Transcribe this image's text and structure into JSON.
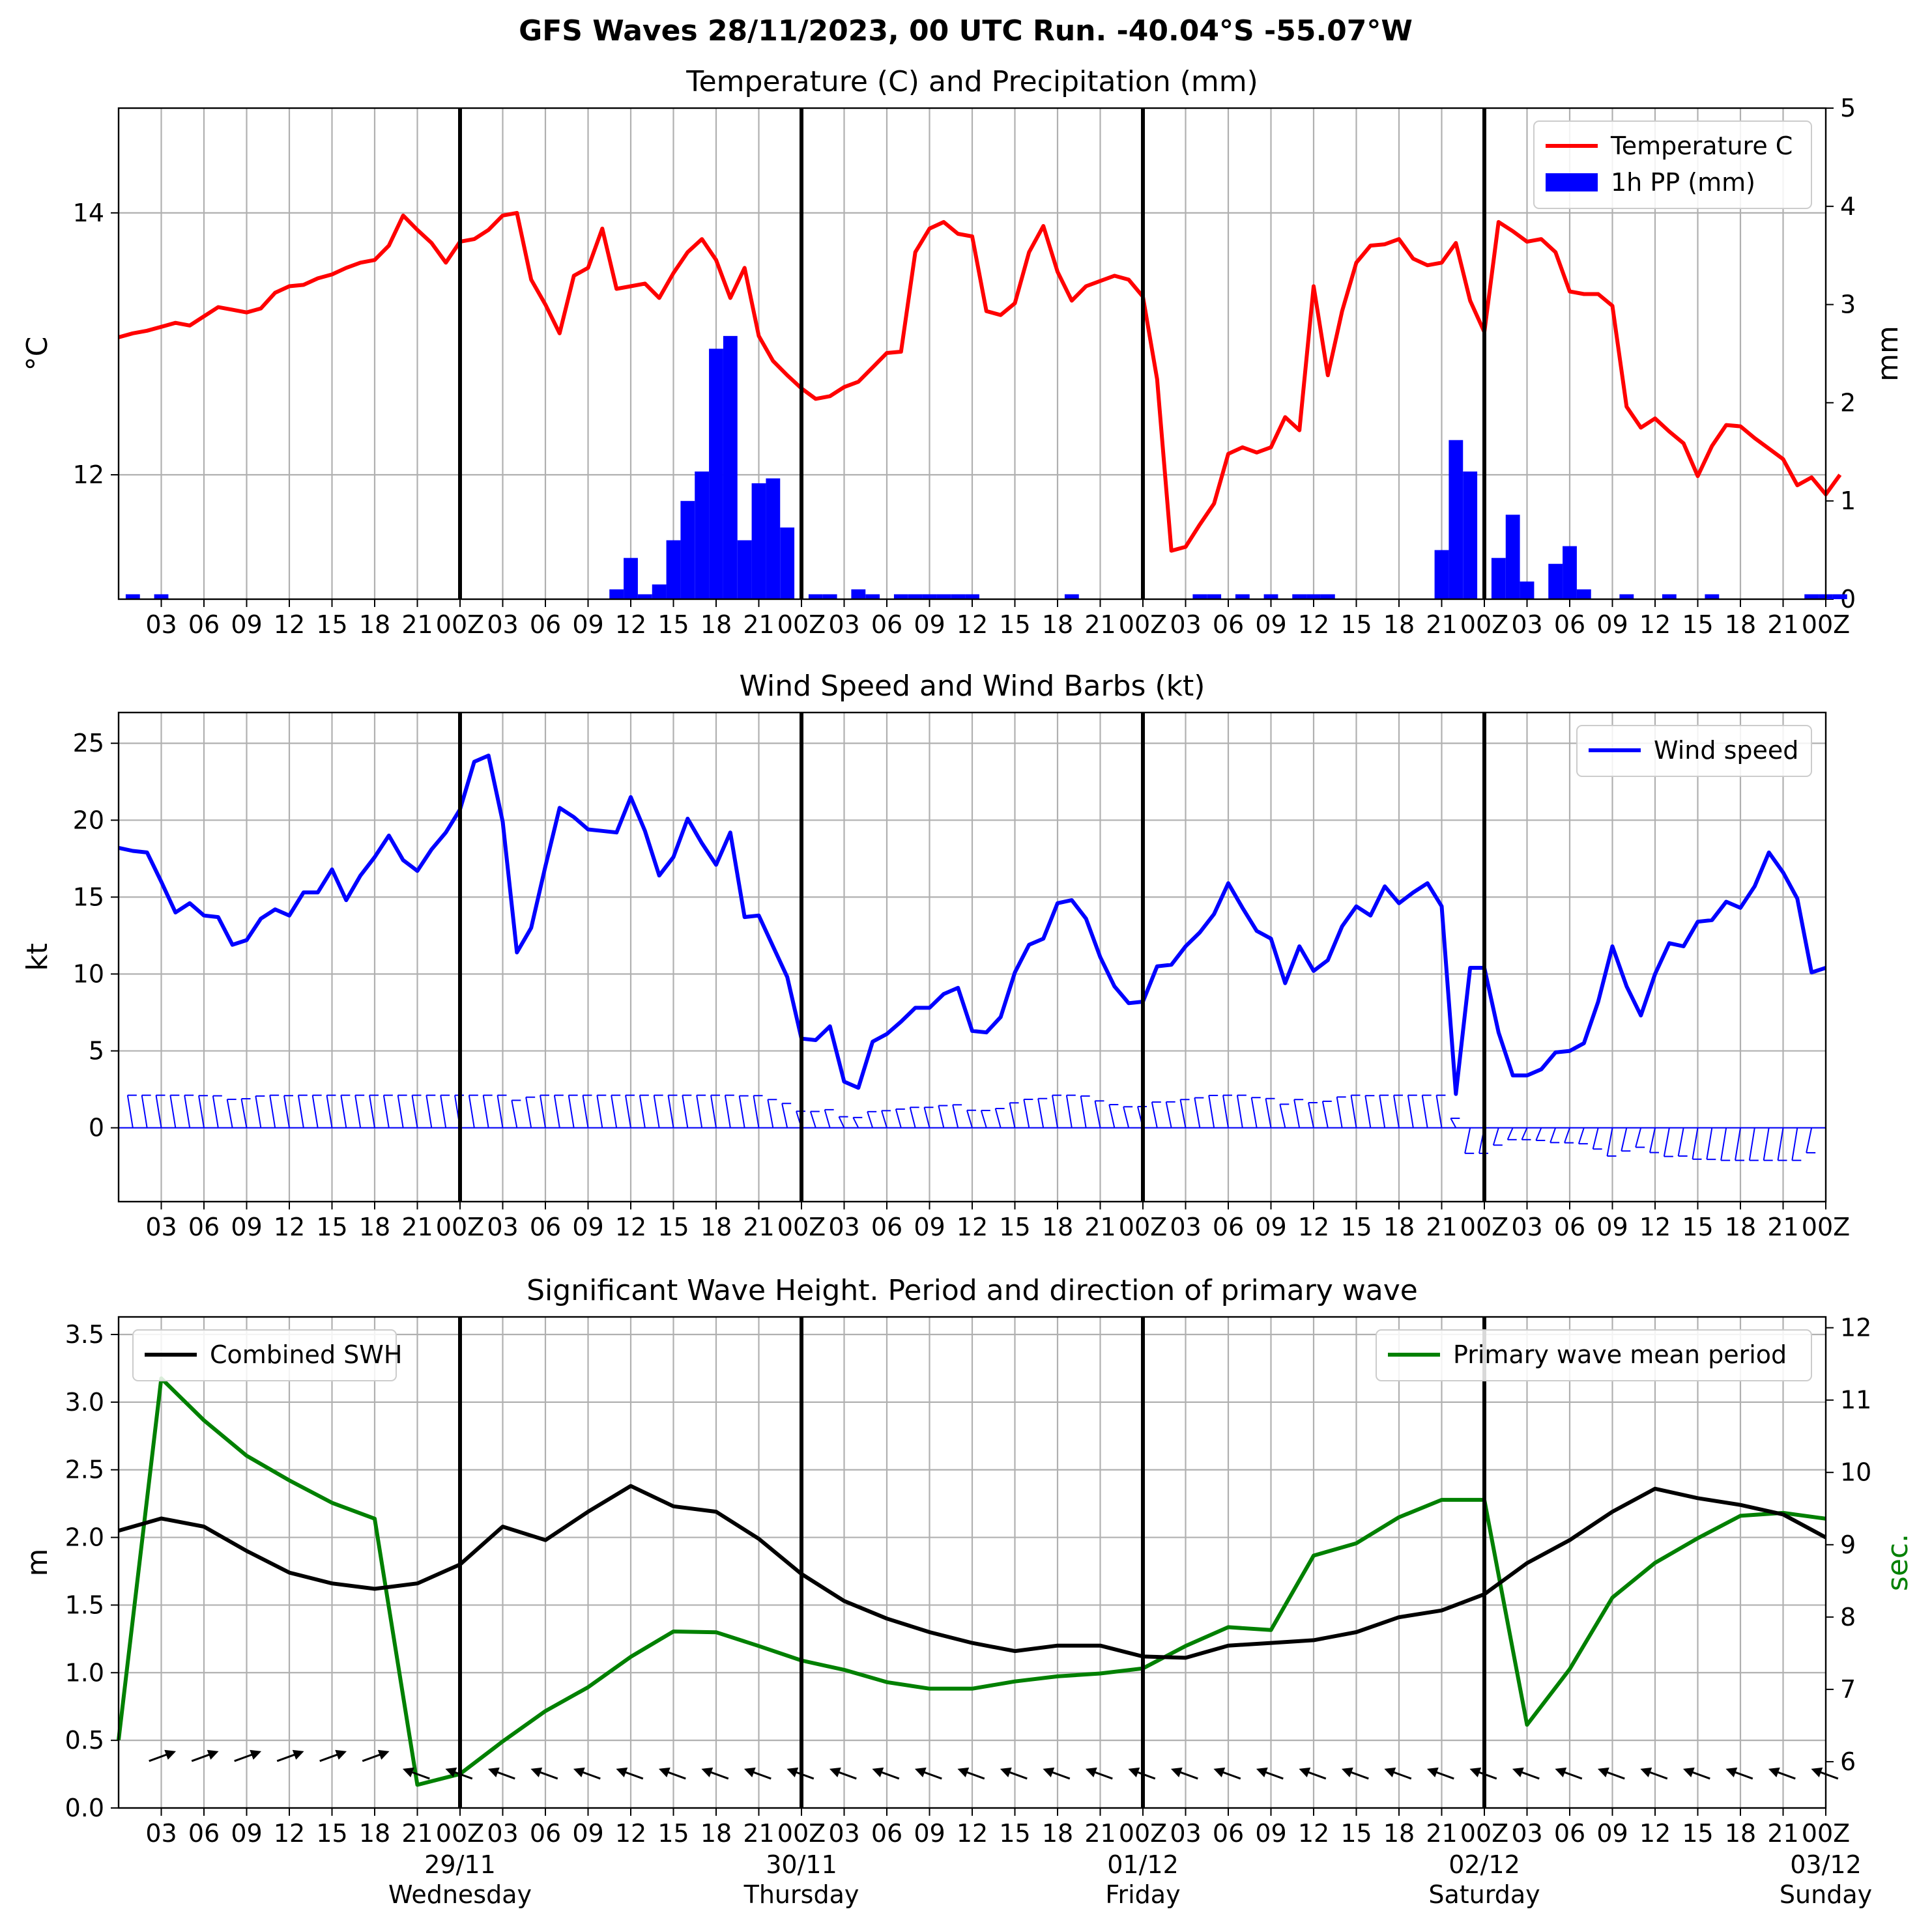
{
  "suptitle": "GFS Waves 28/11/2023, 00 UTC Run. -40.04°S -55.07°W",
  "time_axis": {
    "step_hours": 3,
    "tick_labels": [
      "03",
      "06",
      "09",
      "12",
      "15",
      "18",
      "21",
      "00Z",
      "03",
      "06",
      "09",
      "12",
      "15",
      "18",
      "21",
      "00Z",
      "03",
      "06",
      "09",
      "12",
      "15",
      "18",
      "21",
      "00Z",
      "03",
      "06",
      "09",
      "12",
      "15",
      "18",
      "21",
      "00Z",
      "03",
      "06",
      "09",
      "12",
      "15",
      "18",
      "21",
      "00Z"
    ],
    "day_labels": [
      {
        "date": "29/11",
        "weekday": "Wednesday"
      },
      {
        "date": "30/11",
        "weekday": "Thursday"
      },
      {
        "date": "01/12",
        "weekday": "Friday"
      },
      {
        "date": "02/12",
        "weekday": "Saturday"
      },
      {
        "date": "03/12",
        "weekday": "Sunday"
      }
    ]
  },
  "chart_data": [
    {
      "type": "line",
      "title": "Temperature (C) and Precipitation (mm)",
      "ylabel": "°C",
      "ylabel_right": "mm",
      "ylim": [
        11.05,
        14.8
      ],
      "ylim_right": [
        0,
        5
      ],
      "yticks": [
        12,
        14
      ],
      "yticks_right": [
        0,
        1,
        2,
        3,
        4,
        5
      ],
      "legend": "top-right",
      "grid": true,
      "series": [
        {
          "name": "Temperature C",
          "color": "#ff0000",
          "kind": "line",
          "x_step_hours": 1,
          "values": [
            13.05,
            13.08,
            13.1,
            13.13,
            13.16,
            13.14,
            13.21,
            13.28,
            13.26,
            13.24,
            13.27,
            13.39,
            13.44,
            13.45,
            13.5,
            13.53,
            13.58,
            13.62,
            13.64,
            13.75,
            13.98,
            13.87,
            13.77,
            13.62,
            13.78,
            13.8,
            13.87,
            13.98,
            14.0,
            13.49,
            13.3,
            13.08,
            13.52,
            13.58,
            13.88,
            13.42,
            13.44,
            13.46,
            13.35,
            13.54,
            13.7,
            13.8,
            13.64,
            13.35,
            13.58,
            13.06,
            12.87,
            12.76,
            12.66,
            12.58,
            12.6,
            12.67,
            12.71,
            12.82,
            12.93,
            12.94,
            13.7,
            13.88,
            13.93,
            13.84,
            13.82,
            13.25,
            13.22,
            13.31,
            13.7,
            13.9,
            13.55,
            13.33,
            13.44,
            13.48,
            13.52,
            13.49,
            13.36,
            12.73,
            11.42,
            11.45,
            11.62,
            11.78,
            12.16,
            12.21,
            12.17,
            12.21,
            12.44,
            12.34,
            13.44,
            12.76,
            13.25,
            13.62,
            13.75,
            13.76,
            13.8,
            13.65,
            13.6,
            13.62,
            13.77,
            13.33,
            13.09,
            13.93,
            13.86,
            13.78,
            13.8,
            13.7,
            13.4,
            13.38,
            13.38,
            13.29,
            12.52,
            12.36,
            12.43,
            12.33,
            12.24,
            11.99,
            12.22,
            12.38,
            12.37,
            12.28,
            12.2,
            12.12,
            11.92,
            11.98,
            11.85,
            12.0
          ]
        },
        {
          "name": "1h PP (mm)",
          "color": "#0000ff",
          "kind": "bar",
          "x_step_hours": 1,
          "values": [
            0,
            0.05,
            0,
            0.05,
            0,
            0,
            0,
            0,
            0,
            0,
            0,
            0,
            0,
            0,
            0,
            0,
            0,
            0,
            0,
            0,
            0,
            0,
            0,
            0,
            0,
            0,
            0,
            0,
            0,
            0,
            0,
            0,
            0,
            0,
            0,
            0.1,
            0.42,
            0.05,
            0.15,
            0.6,
            1.0,
            1.3,
            2.55,
            2.68,
            0.6,
            1.18,
            1.23,
            0.73,
            0,
            0.05,
            0.05,
            0,
            0.1,
            0.05,
            0,
            0.05,
            0.05,
            0.05,
            0.05,
            0.05,
            0.05,
            0,
            0,
            0,
            0,
            0,
            0,
            0.05,
            0,
            0,
            0,
            0,
            0,
            0,
            0,
            0,
            0.05,
            0.05,
            0,
            0.05,
            0,
            0.05,
            0,
            0.05,
            0.05,
            0.05,
            0,
            0,
            0,
            0,
            0,
            0,
            0,
            0.5,
            1.62,
            1.3,
            0,
            0.42,
            0.86,
            0.18,
            0,
            0.36,
            0.54,
            0.1,
            0,
            0,
            0.05,
            0,
            0,
            0.05,
            0,
            0,
            0.05,
            0,
            0,
            0,
            0,
            0,
            0,
            0.05,
            0.05,
            0.05,
            0
          ]
        }
      ]
    },
    {
      "type": "line",
      "title": "Wind Speed and Wind Barbs (kt)",
      "ylabel": "kt",
      "ylim": [
        -4.8,
        27
      ],
      "yticks": [
        0,
        5,
        10,
        15,
        20,
        25
      ],
      "legend": "top-right",
      "grid": true,
      "series": [
        {
          "name": "Wind speed",
          "color": "#0000ff",
          "kind": "line",
          "x_step_hours": 1,
          "values": [
            18.2,
            18.0,
            17.9,
            16.0,
            14.0,
            14.6,
            13.8,
            13.7,
            11.9,
            12.2,
            13.6,
            14.2,
            13.8,
            15.3,
            15.3,
            16.8,
            14.8,
            16.4,
            17.6,
            19.0,
            17.4,
            16.7,
            18.1,
            19.2,
            20.7,
            23.8,
            24.2,
            19.9,
            11.4,
            13.0,
            17.0,
            20.8,
            20.2,
            19.4,
            19.3,
            19.2,
            21.5,
            19.3,
            16.4,
            17.6,
            20.1,
            18.5,
            17.1,
            19.2,
            13.7,
            13.8,
            11.8,
            9.8,
            5.8,
            5.7,
            6.6,
            3.0,
            2.6,
            5.6,
            6.1,
            6.9,
            7.8,
            7.8,
            8.7,
            9.1,
            6.3,
            6.2,
            7.2,
            10.1,
            11.9,
            12.3,
            14.6,
            14.8,
            13.6,
            11.1,
            9.2,
            8.1,
            8.2,
            10.5,
            10.6,
            11.8,
            12.7,
            13.9,
            15.9,
            14.3,
            12.8,
            12.3,
            9.4,
            11.8,
            10.2,
            10.9,
            13.1,
            14.4,
            13.8,
            15.7,
            14.6,
            15.3,
            15.9,
            14.4,
            2.2,
            10.4,
            10.4,
            6.2,
            3.4,
            3.4,
            3.8,
            4.9,
            5.0,
            5.5,
            8.2,
            11.8,
            9.2,
            7.3,
            10.0,
            12.0,
            11.8,
            13.4,
            13.5,
            14.7,
            14.3,
            15.7,
            17.9,
            16.6,
            14.9,
            10.1,
            10.4
          ]
        }
      ]
    },
    {
      "type": "line",
      "title": "Significant Wave Height. Period and direction of primary wave",
      "ylabel": "m",
      "ylabel_right": "sec.",
      "ylim": [
        0,
        3.63
      ],
      "ylim_right": [
        5.36,
        12.15
      ],
      "yticks": [
        0.0,
        0.5,
        1.0,
        1.5,
        2.0,
        2.5,
        3.0,
        3.5
      ],
      "yticks_right": [
        6,
        7,
        8,
        9,
        10,
        11,
        12
      ],
      "grid": true,
      "series": [
        {
          "name": "Combined SWH",
          "color": "#000000",
          "kind": "line",
          "axis": "left",
          "x_step_hours": 3,
          "values": [
            2.05,
            2.14,
            2.08,
            1.9,
            1.74,
            1.66,
            1.62,
            1.66,
            1.8,
            2.08,
            1.98,
            2.19,
            2.38,
            2.23,
            2.19,
            1.99,
            1.73,
            1.53,
            1.4,
            1.3,
            1.22,
            1.16,
            1.2,
            1.2,
            1.12,
            1.11,
            1.2,
            1.22,
            1.24,
            1.3,
            1.41,
            1.46,
            1.58,
            1.81,
            1.98,
            2.19,
            2.36,
            2.29,
            2.24,
            2.17,
            2.0
          ],
          "legend": "top-left"
        },
        {
          "name": "Primary wave mean period",
          "color": "#008000",
          "kind": "line",
          "axis": "right",
          "x_step_hours": 3,
          "values": [
            6.3,
            11.3,
            10.72,
            10.23,
            9.89,
            9.58,
            9.36,
            5.68,
            5.83,
            6.28,
            6.7,
            7.03,
            7.45,
            7.8,
            7.79,
            7.6,
            7.4,
            7.27,
            7.1,
            7.01,
            7.01,
            7.11,
            7.18,
            7.22,
            7.29,
            7.6,
            7.86,
            7.82,
            8.85,
            9.02,
            9.38,
            9.62,
            9.62,
            6.51,
            7.28,
            8.27,
            8.75,
            9.09,
            9.4,
            9.44,
            9.36
          ],
          "legend": "top-right"
        }
      ]
    }
  ],
  "colors": {
    "temperature": "#ff0000",
    "precipitation": "#0000ff",
    "wind": "#0000ff",
    "swh": "#000000",
    "period": "#008000",
    "wave_arrows": "#000000",
    "grid": "#b0b0b0",
    "day_lines": "#000000"
  }
}
